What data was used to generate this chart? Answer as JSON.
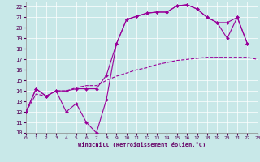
{
  "xlabel": "Windchill (Refroidissement éolien,°C)",
  "bg_color": "#c8e8e8",
  "line_color": "#990099",
  "xlim": [
    0,
    23
  ],
  "ylim": [
    10,
    22.5
  ],
  "yticks": [
    10,
    11,
    12,
    13,
    14,
    15,
    16,
    17,
    18,
    19,
    20,
    21,
    22
  ],
  "xticks": [
    0,
    1,
    2,
    3,
    4,
    5,
    6,
    7,
    8,
    9,
    10,
    11,
    12,
    13,
    14,
    15,
    16,
    17,
    18,
    19,
    20,
    21,
    22,
    23
  ],
  "curve1_x": [
    0,
    1,
    2,
    3,
    4,
    5,
    6,
    7,
    8,
    9,
    10,
    11,
    12,
    13,
    14,
    15,
    16,
    17,
    18,
    19,
    20,
    21,
    22
  ],
  "curve1_y": [
    12.0,
    14.2,
    13.5,
    14.0,
    12.0,
    12.8,
    11.0,
    10.0,
    13.2,
    18.5,
    20.8,
    21.1,
    21.4,
    21.5,
    21.5,
    22.1,
    22.2,
    21.8,
    21.0,
    20.5,
    19.0,
    21.0,
    18.5
  ],
  "curve2_x": [
    0,
    1,
    2,
    3,
    4,
    5,
    6,
    7,
    8,
    9,
    10,
    11,
    12,
    13,
    14,
    15,
    16,
    17,
    18,
    19,
    20,
    21,
    22
  ],
  "curve2_y": [
    12.0,
    14.2,
    13.5,
    14.0,
    14.0,
    14.2,
    14.2,
    14.2,
    15.5,
    18.5,
    20.8,
    21.1,
    21.4,
    21.5,
    21.5,
    22.1,
    22.2,
    21.8,
    21.0,
    20.5,
    20.5,
    21.0,
    18.5
  ],
  "curve3_x": [
    0,
    1,
    2,
    3,
    4,
    5,
    6,
    7,
    8,
    9,
    10,
    11,
    12,
    13,
    14,
    15,
    16,
    17,
    18,
    19,
    20,
    21,
    22,
    23
  ],
  "curve3_y": [
    12.0,
    13.7,
    13.5,
    14.0,
    14.0,
    14.3,
    14.5,
    14.5,
    15.0,
    15.4,
    15.7,
    16.0,
    16.2,
    16.5,
    16.7,
    16.9,
    17.0,
    17.1,
    17.2,
    17.2,
    17.2,
    17.2,
    17.2,
    17.0
  ]
}
